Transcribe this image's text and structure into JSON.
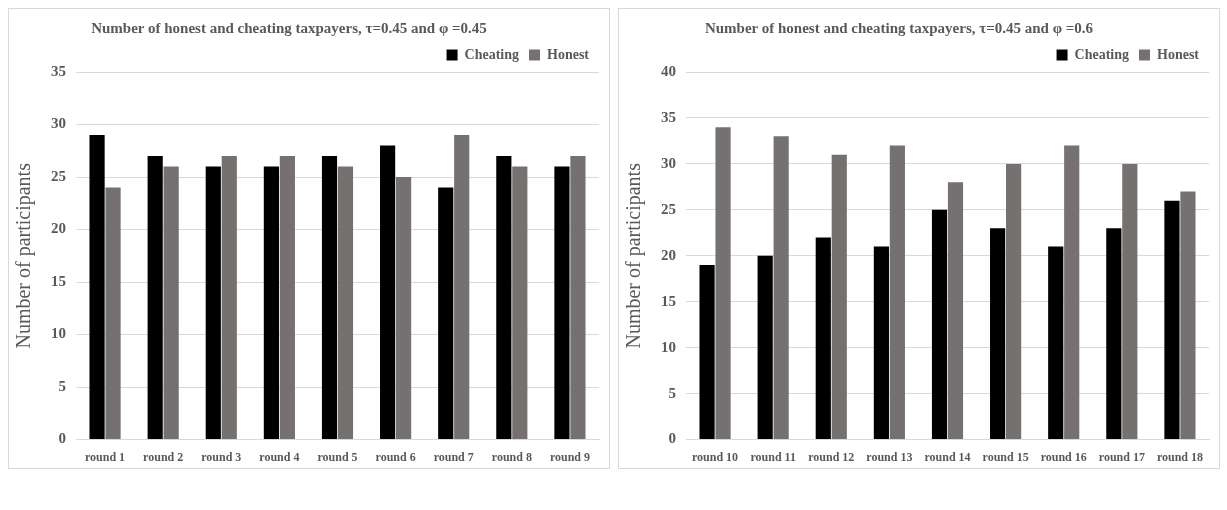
{
  "chart_data": [
    {
      "type": "bar",
      "title": "Number of honest and cheating taxpayers, τ=0.45 and φ =0.45",
      "ylabel": "Number of participants",
      "categories": [
        "round 1",
        "round 2",
        "round 3",
        "round 4",
        "round 5",
        "round 6",
        "round 7",
        "round 8",
        "round 9"
      ],
      "series": [
        {
          "name": "Cheating",
          "color": "#000000",
          "values": [
            29,
            27,
            26,
            26,
            27,
            28,
            24,
            27,
            26
          ]
        },
        {
          "name": "Honest",
          "color": "#767171",
          "values": [
            24,
            26,
            27,
            27,
            26,
            25,
            29,
            26,
            27
          ]
        }
      ],
      "ylim": [
        0,
        35
      ],
      "yticks": [
        0,
        5,
        10,
        15,
        20,
        25,
        30,
        35
      ],
      "grid": "y",
      "legend": "top right"
    },
    {
      "type": "bar",
      "title": "Number of honest and cheating taxpayers, τ=0.45 and φ =0.6",
      "ylabel": "Number of participants",
      "categories": [
        "round 10",
        "round 11",
        "round 12",
        "round 13",
        "round 14",
        "round 15",
        "round 16",
        "round 17",
        "round 18"
      ],
      "series": [
        {
          "name": "Cheating",
          "color": "#000000",
          "values": [
            19,
            20,
            22,
            21,
            25,
            23,
            21,
            23,
            26
          ]
        },
        {
          "name": "Honest",
          "color": "#767171",
          "values": [
            34,
            33,
            31,
            32,
            28,
            30,
            32,
            30,
            27
          ]
        }
      ],
      "ylim": [
        0,
        40
      ],
      "yticks": [
        0,
        5,
        10,
        15,
        20,
        25,
        30,
        35,
        40
      ],
      "grid": "y",
      "legend": "top right"
    }
  ]
}
